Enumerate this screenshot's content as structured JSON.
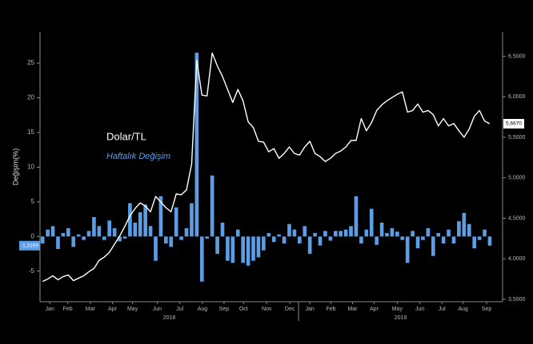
{
  "chart_data": {
    "type": "bar-line",
    "ylabel": "Değişim(%)",
    "xlim": [
      -0.5,
      89.5
    ],
    "xticks": [
      {
        "value": 1.4,
        "label": "Jan"
      },
      {
        "value": 4.9,
        "label": "Feb"
      },
      {
        "value": 9.3,
        "label": "Mar"
      },
      {
        "value": 13.6,
        "label": "Apr"
      },
      {
        "value": 17.5,
        "label": "May"
      },
      {
        "value": 22.3,
        "label": "Jun"
      },
      {
        "value": 26.7,
        "label": "Jul"
      },
      {
        "value": 31.1,
        "label": "Aug"
      },
      {
        "value": 35.3,
        "label": "Sep"
      },
      {
        "value": 39.1,
        "label": "Oct"
      },
      {
        "value": 43.6,
        "label": "Nov"
      },
      {
        "value": 48.1,
        "label": "Dec"
      },
      {
        "value": 52,
        "label": "Jan"
      },
      {
        "value": 56.1,
        "label": "Feb"
      },
      {
        "value": 60.3,
        "label": "Mar"
      },
      {
        "value": 64.5,
        "label": "Apr"
      },
      {
        "value": 69,
        "label": "May"
      },
      {
        "value": 73.4,
        "label": "Jun"
      },
      {
        "value": 77.7,
        "label": "Jul"
      },
      {
        "value": 81.8,
        "label": "Aug"
      },
      {
        "value": 86.4,
        "label": "Sep"
      }
    ],
    "xgroups": [
      {
        "label": "2018",
        "start": -0.5,
        "end": 49.8
      },
      {
        "label": "2019",
        "start": 49.8,
        "end": 89.5
      }
    ],
    "ylim": [
      -9.4,
      29.5
    ],
    "yticks": [
      -5,
      0,
      5,
      10,
      15,
      20,
      25
    ],
    "y2lim": [
      3.47,
      6.8
    ],
    "y2ticks": [
      {
        "value": 3.5,
        "label": "3,5000"
      },
      {
        "value": 4,
        "label": "4,0000"
      },
      {
        "value": 4.5,
        "label": "4,5000"
      },
      {
        "value": 5,
        "label": "5,0000"
      },
      {
        "value": 5.5,
        "label": "5,5000"
      },
      {
        "value": 6,
        "label": "6,0000"
      },
      {
        "value": 6.5,
        "label": "6,5000"
      }
    ],
    "series": [
      {
        "name": "Haftalık Değişim",
        "type": "bar",
        "color": "#5b9ee6",
        "values": [
          -1.0,
          1.0,
          1.5,
          -1.8,
          0.5,
          1.2,
          -1.5,
          0.3,
          -0.5,
          0.8,
          2.8,
          1.5,
          -0.5,
          2.3,
          1.2,
          -0.7,
          -0.3,
          4.8,
          2.0,
          3.5,
          4.6,
          1.5,
          -3.5,
          5.8,
          -1.0,
          -1.5,
          4.2,
          -0.5,
          1.2,
          4.8,
          26.5,
          -6.5,
          -0.3,
          8.8,
          -2.5,
          2.0,
          -3.5,
          -3.8,
          1.0,
          -3.8,
          -4.2,
          -3.5,
          -3.0,
          -2.0,
          0.5,
          -0.8,
          0.3,
          -1.0,
          1.8,
          1.0,
          -1.0,
          1.5,
          -2.5,
          0.5,
          -1.3,
          0.8,
          -0.6,
          0.8,
          0.8,
          1.0,
          1.5,
          5.8,
          -1.0,
          1.0,
          4.0,
          -1.2,
          2.0,
          0.5,
          1.2,
          0.7,
          -0.5,
          -3.8,
          0.8,
          -1.7,
          -0.5,
          1.2,
          -2.8,
          0.5,
          -1.0,
          1.0,
          -1.0,
          2.2,
          3.4,
          1.8,
          -1.7,
          -0.5,
          1.0,
          -1.3169
        ],
        "value_labels": [
          null,
          null,
          null,
          null,
          null,
          null,
          null,
          null,
          null,
          null,
          null,
          null,
          null,
          null,
          null,
          null,
          null,
          null,
          null,
          null,
          null,
          null,
          null,
          null,
          null,
          null,
          null,
          null,
          null,
          null,
          null,
          null,
          null,
          null,
          null,
          null,
          null,
          null,
          null,
          null,
          null,
          null,
          null,
          null,
          null,
          null,
          null,
          null,
          null,
          null,
          null,
          null,
          null,
          null,
          null,
          null,
          null,
          null,
          null,
          null,
          null,
          null,
          null,
          null,
          null,
          null,
          null,
          null,
          null,
          null,
          null,
          null,
          null,
          null,
          null,
          null,
          null,
          null,
          null,
          null,
          null,
          null,
          null,
          null,
          null,
          null,
          null,
          "-1,3169"
        ]
      },
      {
        "name": "Dolar/TL",
        "type": "line",
        "axis": "y2",
        "color": "#ffffff",
        "values": [
          3.72,
          3.75,
          3.79,
          3.74,
          3.78,
          3.8,
          3.73,
          3.76,
          3.79,
          3.84,
          3.88,
          3.98,
          4.02,
          4.08,
          4.18,
          4.28,
          4.4,
          4.53,
          4.62,
          4.69,
          4.65,
          4.58,
          4.77,
          4.7,
          4.63,
          4.58,
          4.8,
          4.79,
          4.85,
          5.17,
          6.45,
          6.02,
          6.01,
          6.54,
          6.38,
          6.25,
          6.09,
          5.93,
          6.09,
          5.95,
          5.69,
          5.62,
          5.45,
          5.44,
          5.32,
          5.36,
          5.24,
          5.3,
          5.38,
          5.3,
          5.28,
          5.38,
          5.45,
          5.3,
          5.26,
          5.2,
          5.24,
          5.3,
          5.33,
          5.38,
          5.46,
          5.46,
          5.73,
          5.58,
          5.68,
          5.83,
          5.9,
          5.95,
          5.99,
          6.03,
          6.06,
          5.81,
          5.83,
          5.91,
          5.81,
          5.83,
          5.78,
          5.64,
          5.73,
          5.64,
          5.67,
          5.58,
          5.5,
          5.6,
          5.76,
          5.83,
          5.7,
          5.667
        ],
        "value_labels": [
          null,
          null,
          null,
          null,
          null,
          null,
          null,
          null,
          null,
          null,
          null,
          null,
          null,
          null,
          null,
          null,
          null,
          null,
          null,
          null,
          null,
          null,
          null,
          null,
          null,
          null,
          null,
          null,
          null,
          null,
          null,
          null,
          null,
          null,
          null,
          null,
          null,
          null,
          null,
          null,
          null,
          null,
          null,
          null,
          null,
          null,
          null,
          null,
          null,
          null,
          null,
          null,
          null,
          null,
          null,
          null,
          null,
          null,
          null,
          null,
          null,
          null,
          null,
          null,
          null,
          null,
          null,
          null,
          null,
          null,
          null,
          null,
          null,
          null,
          null,
          null,
          null,
          null,
          null,
          null,
          null,
          null,
          null,
          null,
          null,
          null,
          null,
          "5,6670"
        ]
      }
    ]
  }
}
